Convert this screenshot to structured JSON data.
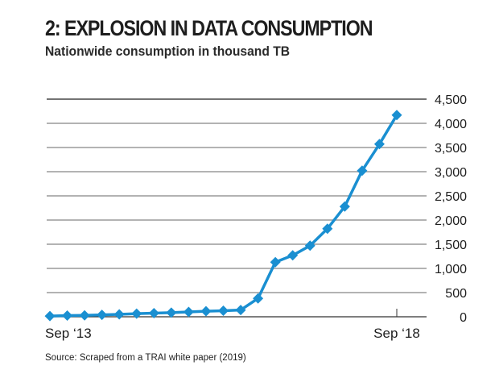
{
  "chart_data": {
    "type": "line",
    "title": "2: EXPLOSION IN DATA CONSUMPTION",
    "subtitle": "Nationwide consumption in thousand TB",
    "xlabel": "",
    "ylabel": "",
    "source": "Source: Scraped from a TRAI white paper (2019)",
    "x_tick_labels": [
      {
        "index": 0,
        "label": "Sep ‘13"
      },
      {
        "index": 20,
        "label": "Sep ‘18"
      }
    ],
    "y_ticks": [
      0,
      500,
      1000,
      1500,
      2000,
      2500,
      3000,
      3500,
      4000,
      4500
    ],
    "y_tick_labels": [
      "0",
      "500",
      "1,000",
      "1,500",
      "2,000",
      "2,500",
      "3,000",
      "3,500",
      "4,000",
      "4,500"
    ],
    "ylim": [
      0,
      4500
    ],
    "grid": true,
    "legend": "none",
    "series": [
      {
        "name": "Nationwide data consumption",
        "color": "#1a8fd1",
        "marker": "diamond",
        "values": [
          15,
          25,
          30,
          40,
          50,
          65,
          75,
          85,
          100,
          115,
          125,
          140,
          380,
          1130,
          1270,
          1470,
          1820,
          2280,
          3020,
          3570,
          4170
        ]
      }
    ]
  },
  "colors": {
    "line": "#1a8fd1",
    "gridline": "#9a9a9a",
    "top_gridline": "#222222",
    "baseline": "#333333"
  }
}
